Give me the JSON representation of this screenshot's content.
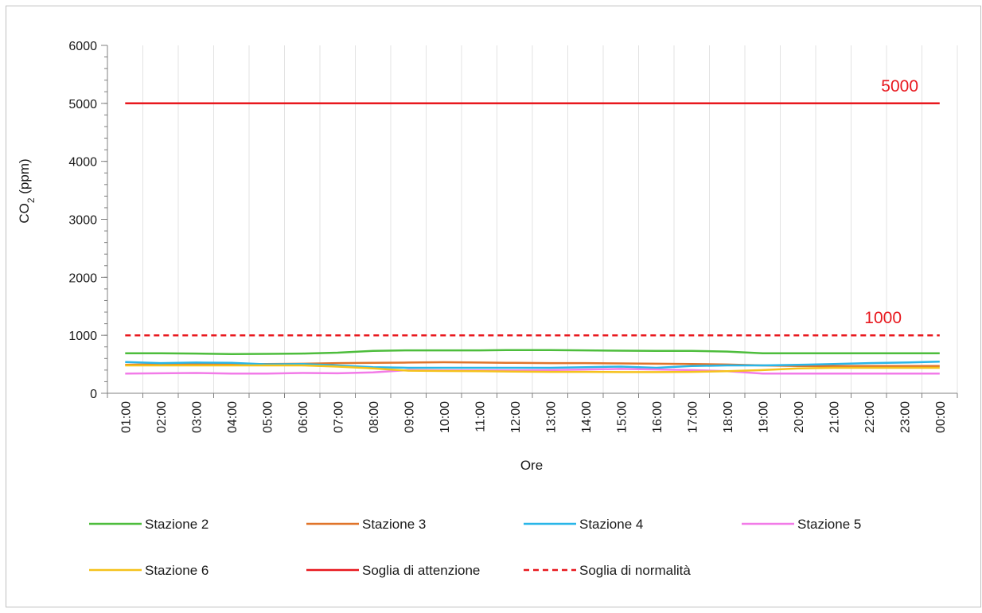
{
  "chart_data": {
    "type": "line",
    "title": "",
    "xlabel": "Ore",
    "ylabel": {
      "prefix": "CO",
      "subscript": "2",
      "suffix": " (ppm)"
    },
    "ylim": [
      0,
      6000
    ],
    "y_major_ticks": [
      0,
      1000,
      2000,
      3000,
      4000,
      5000,
      6000
    ],
    "y_minor_step": 200,
    "grid": {
      "vertical": true,
      "horizontal": false
    },
    "legend_position": "bottom",
    "categories": [
      "01:00",
      "02:00",
      "03:00",
      "04:00",
      "05:00",
      "06:00",
      "07:00",
      "08:00",
      "09:00",
      "10:00",
      "11:00",
      "12:00",
      "13:00",
      "14:00",
      "15:00",
      "16:00",
      "17:00",
      "18:00",
      "19:00",
      "20:00",
      "21:00",
      "22:00",
      "23:00",
      "00:00"
    ],
    "series": [
      {
        "name": "Stazione 2",
        "color": "#4dbd3c",
        "dash": false,
        "values": [
          690,
          690,
          685,
          675,
          680,
          685,
          700,
          730,
          740,
          740,
          740,
          745,
          745,
          740,
          735,
          730,
          730,
          720,
          690,
          690,
          690,
          690,
          690,
          690
        ]
      },
      {
        "name": "Stazione 3",
        "color": "#e0742a",
        "dash": false,
        "values": [
          490,
          500,
          500,
          500,
          505,
          510,
          520,
          525,
          530,
          535,
          530,
          525,
          520,
          520,
          515,
          510,
          505,
          495,
          480,
          470,
          470,
          470,
          470,
          470
        ]
      },
      {
        "name": "Stazione 4",
        "color": "#29b6e8",
        "dash": false,
        "values": [
          540,
          520,
          530,
          525,
          500,
          505,
          480,
          450,
          440,
          440,
          440,
          440,
          440,
          450,
          460,
          440,
          470,
          480,
          480,
          490,
          505,
          520,
          530,
          545
        ]
      },
      {
        "name": "Stazione 5",
        "color": "#f27be8",
        "dash": false,
        "values": [
          340,
          345,
          350,
          340,
          340,
          350,
          345,
          360,
          400,
          395,
          395,
          395,
          400,
          410,
          420,
          410,
          400,
          380,
          340,
          340,
          340,
          340,
          340,
          340
        ]
      },
      {
        "name": "Stazione 6",
        "color": "#f5c21b",
        "dash": false,
        "values": [
          480,
          480,
          480,
          480,
          480,
          480,
          460,
          430,
          390,
          385,
          380,
          375,
          370,
          370,
          365,
          365,
          370,
          380,
          400,
          430,
          440,
          440,
          440,
          440
        ]
      },
      {
        "name": "Soglia di attenzione",
        "color": "#e8181e",
        "dash": false,
        "values": [
          5000,
          5000,
          5000,
          5000,
          5000,
          5000,
          5000,
          5000,
          5000,
          5000,
          5000,
          5000,
          5000,
          5000,
          5000,
          5000,
          5000,
          5000,
          5000,
          5000,
          5000,
          5000,
          5000,
          5000
        ]
      },
      {
        "name": "Soglia di normalità",
        "color": "#e8181e",
        "dash": true,
        "values": [
          1000,
          1000,
          1000,
          1000,
          1000,
          1000,
          1000,
          1000,
          1000,
          1000,
          1000,
          1000,
          1000,
          1000,
          1000,
          1000,
          1000,
          1000,
          1000,
          1000,
          1000,
          1000,
          1000,
          1000
        ]
      }
    ],
    "annotations": [
      {
        "text": "5000",
        "y": 5000,
        "color": "#e8181e"
      },
      {
        "text": "1000",
        "y": 1000,
        "color": "#e8181e"
      }
    ]
  }
}
